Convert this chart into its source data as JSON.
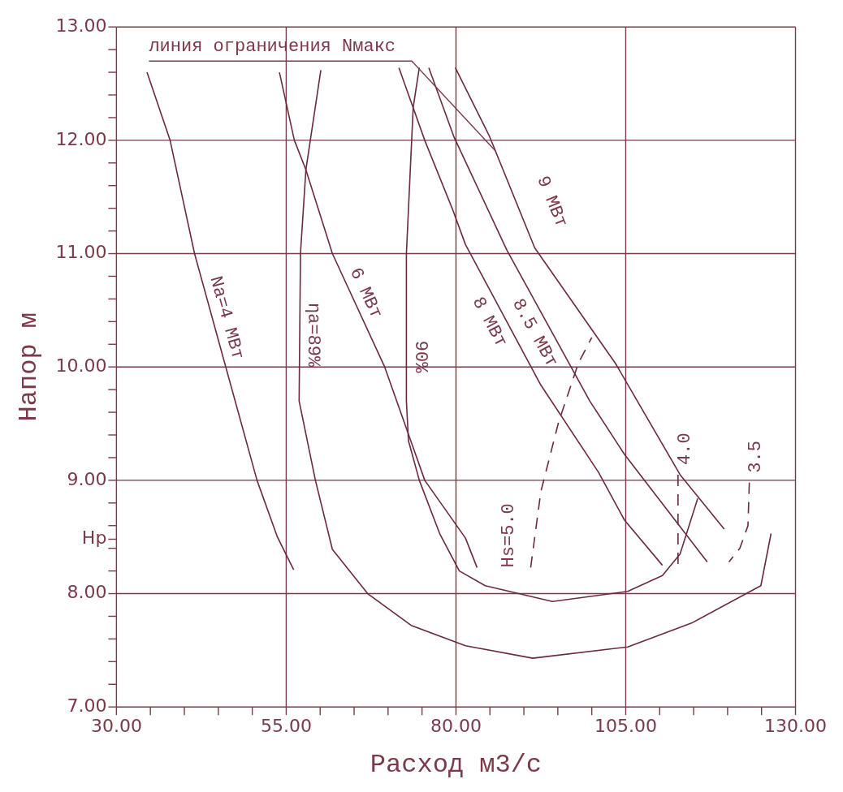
{
  "chart_data": {
    "type": "line",
    "xlabel": "Расход м3/с",
    "ylabel": "Напор м",
    "xlim": [
      30,
      130
    ],
    "ylim": [
      7,
      13
    ],
    "xticks": [
      {
        "value": 30,
        "label": "30.00"
      },
      {
        "value": 35,
        "label": null
      },
      {
        "value": 40,
        "label": null
      },
      {
        "value": 45,
        "label": null
      },
      {
        "value": 50,
        "label": null
      },
      {
        "value": 55,
        "label": "55.00"
      },
      {
        "value": 60,
        "label": null
      },
      {
        "value": 65,
        "label": null
      },
      {
        "value": 70,
        "label": null
      },
      {
        "value": 75,
        "label": null
      },
      {
        "value": 80,
        "label": "80.00"
      },
      {
        "value": 85,
        "label": null
      },
      {
        "value": 90,
        "label": null
      },
      {
        "value": 95,
        "label": null
      },
      {
        "value": 100,
        "label": null
      },
      {
        "value": 105,
        "label": "105.00"
      },
      {
        "value": 110,
        "label": null
      },
      {
        "value": 115,
        "label": null
      },
      {
        "value": 120,
        "label": null
      },
      {
        "value": 125,
        "label": null
      },
      {
        "value": 130,
        "label": "130.00"
      }
    ],
    "yticks": [
      {
        "value": 7,
        "label": "7.00"
      },
      {
        "value": 7.2,
        "label": null
      },
      {
        "value": 7.4,
        "label": null
      },
      {
        "value": 7.6,
        "label": null
      },
      {
        "value": 7.8,
        "label": null
      },
      {
        "value": 8,
        "label": "8.00"
      },
      {
        "value": 8.2,
        "label": null
      },
      {
        "value": 8.4,
        "label": null
      },
      {
        "value": 8.48,
        "label": "Hp"
      },
      {
        "value": 8.6,
        "label": null
      },
      {
        "value": 8.8,
        "label": null
      },
      {
        "value": 9,
        "label": "9.00"
      },
      {
        "value": 9.2,
        "label": null
      },
      {
        "value": 9.4,
        "label": null
      },
      {
        "value": 9.6,
        "label": null
      },
      {
        "value": 9.8,
        "label": null
      },
      {
        "value": 10,
        "label": "10.00"
      },
      {
        "value": 10.2,
        "label": null
      },
      {
        "value": 10.4,
        "label": null
      },
      {
        "value": 10.6,
        "label": null
      },
      {
        "value": 10.8,
        "label": null
      },
      {
        "value": 11,
        "label": "11.00"
      },
      {
        "value": 11.2,
        "label": null
      },
      {
        "value": 11.4,
        "label": null
      },
      {
        "value": 11.6,
        "label": null
      },
      {
        "value": 11.8,
        "label": null
      },
      {
        "value": 12,
        "label": "12.00"
      },
      {
        "value": 12.2,
        "label": null
      },
      {
        "value": 12.4,
        "label": null
      },
      {
        "value": 12.6,
        "label": null
      },
      {
        "value": 12.8,
        "label": null
      },
      {
        "value": 13,
        "label": "13.00"
      }
    ],
    "grid": true,
    "legend": false,
    "marker": "none",
    "annotations": [
      {
        "text": "линия ограничения Nмакс",
        "x": 85.9,
        "y": 11.9
      }
    ],
    "series": [
      {
        "name": "Na=4 МВт",
        "color": "#6b2a3c",
        "line_style": "solid",
        "x": [
          34.5,
          37.9,
          41.5,
          46.1,
          50.7,
          53.7,
          56.1
        ],
        "values": [
          12.6,
          12,
          11,
          10,
          9,
          8.5,
          8.21
        ]
      },
      {
        "name": "6 МВт",
        "color": "#6b2a3c",
        "line_style": "solid",
        "x": [
          54.0,
          56.2,
          57.9,
          61.8,
          69.5,
          75.4,
          81.4,
          83.1
        ],
        "values": [
          12.6,
          12.0,
          11.74,
          11.0,
          10.0,
          9.0,
          8.49,
          8.23
        ]
      },
      {
        "name": "8 МВт",
        "color": "#6b2a3c",
        "line_style": "solid",
        "x": [
          71.6,
          75.4,
          79.5,
          81.4,
          92.5,
          101,
          104.8,
          110.4
        ],
        "values": [
          12.64,
          12.0,
          11.39,
          11.08,
          9.84,
          9.07,
          8.65,
          8.25
        ]
      },
      {
        "name": "8.5 МВт",
        "color": "#6b2a3c",
        "line_style": "solid",
        "x": [
          76.0,
          79.7,
          87.5,
          99.7,
          104.8,
          117.0
        ],
        "values": [
          12.64,
          12.03,
          11.03,
          9.7,
          9.23,
          8.28
        ]
      },
      {
        "name": "9 МВт",
        "color": "#6b2a3c",
        "line_style": "solid",
        "x": [
          79.9,
          84.9,
          91.6,
          103.5,
          113.0,
          119.5
        ],
        "values": [
          12.64,
          12.04,
          11.05,
          10.03,
          9.05,
          8.57
        ]
      },
      {
        "name": "ηa=89%",
        "color": "#6b2a3c",
        "line_style": "solid",
        "x": [
          60.1,
          57.9,
          57.1,
          56.9,
          59.3,
          61.8,
          67,
          73.4,
          81.4,
          91.3,
          105.3,
          114.7,
          124.9,
          126.4
        ],
        "values": [
          12.62,
          11.74,
          11.0,
          9.7,
          9.0,
          8.39,
          8.0,
          7.72,
          7.54,
          7.43,
          7.53,
          7.74,
          8.07,
          8.53
        ]
      },
      {
        "name": "90%",
        "color": "#6b2a3c",
        "line_style": "solid",
        "x": [
          74.6,
          73.7,
          72.7,
          72.7,
          73.0,
          74.6,
          77.6,
          80.5,
          84.3,
          94.2,
          105.3,
          110.4,
          113.0,
          115.6
        ],
        "values": [
          12.64,
          12.29,
          11.0,
          9.7,
          9.35,
          9.0,
          8.53,
          8.2,
          8.07,
          7.93,
          8.02,
          8.16,
          8.35,
          8.84
        ]
      },
      {
        "name": "Hs=5.0",
        "color": "#6b2a3c",
        "line_style": "dashed",
        "x": [
          91.0,
          92.5,
          95.1,
          98.0,
          100.0
        ],
        "values": [
          8.23,
          8.9,
          9.51,
          10.03,
          10.26
        ]
      },
      {
        "name": "4.0",
        "color": "#6b2a3c",
        "line_style": "dashed",
        "x": [
          112.7,
          112.7
        ],
        "values": [
          9.05,
          8.25
        ]
      },
      {
        "name": "3.5",
        "color": "#6b2a3c",
        "line_style": "dashed",
        "x": [
          123.2,
          123.0,
          121.8,
          120.2
        ],
        "values": [
          8.98,
          8.6,
          8.4,
          8.28
        ]
      }
    ]
  }
}
